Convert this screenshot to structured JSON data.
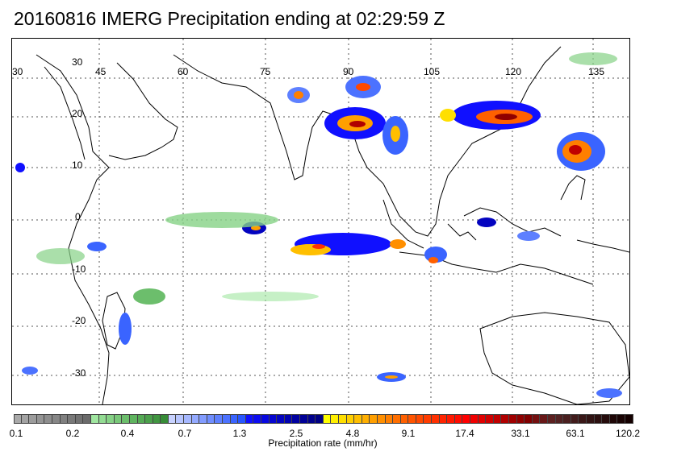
{
  "title": "20160816 IMERG Precipitation ending at 02:29:59 Z",
  "map": {
    "lon_labels": [
      "30",
      "45",
      "60",
      "75",
      "90",
      "105",
      "120",
      "135"
    ],
    "lat_labels": [
      "30",
      "20",
      "10",
      "0",
      "-10",
      "-20",
      "-30"
    ],
    "lon_range": [
      30,
      145
    ],
    "lat_range": [
      -37,
      35
    ]
  },
  "colorbar": {
    "tick_labels": [
      "0.1",
      "0.2",
      "0.4",
      "0.7",
      "1.3",
      "2.5",
      "4.8",
      "9.1",
      "17.4",
      "33.1",
      "63.1",
      "120.2"
    ],
    "title": "Precipitation rate (mm/hr)",
    "colors": [
      "#a9a9a9",
      "#a3a3a3",
      "#9c9c9c",
      "#959595",
      "#8e8e8e",
      "#878787",
      "#808080",
      "#797979",
      "#727272",
      "#6b6b6b",
      "#a0e6a0",
      "#93dc93",
      "#86d286",
      "#79c879",
      "#6cbe6c",
      "#5fb45f",
      "#55aa55",
      "#4ba04b",
      "#419641",
      "#378c37",
      "#c8d2ff",
      "#b8c6ff",
      "#a6b8ff",
      "#94aaff",
      "#829cff",
      "#708eff",
      "#5e80ff",
      "#4c72ff",
      "#3a64ff",
      "#2856ff",
      "#1010ff",
      "#0c0cf0",
      "#0808e0",
      "#0606d0",
      "#0404c0",
      "#0202b0",
      "#0000a0",
      "#000096",
      "#00008c",
      "#000082",
      "#ffff00",
      "#ffef00",
      "#ffdf00",
      "#ffcf00",
      "#ffbf00",
      "#ffaf00",
      "#ff9f00",
      "#ff8f00",
      "#ff7f00",
      "#ff6f00",
      "#ff6000",
      "#ff5400",
      "#ff4800",
      "#ff3c00",
      "#ff3000",
      "#ff2400",
      "#ff1800",
      "#ff0c00",
      "#ff0000",
      "#f00000",
      "#e00000",
      "#d00000",
      "#c00000",
      "#b00000",
      "#a00000",
      "#900000",
      "#800000",
      "#741010",
      "#681818",
      "#5c2020",
      "#522222",
      "#4a2020",
      "#421c1c",
      "#3a1818",
      "#321414",
      "#2c1010",
      "#260c0c",
      "#200808",
      "#1a0404",
      "#140000"
    ]
  }
}
